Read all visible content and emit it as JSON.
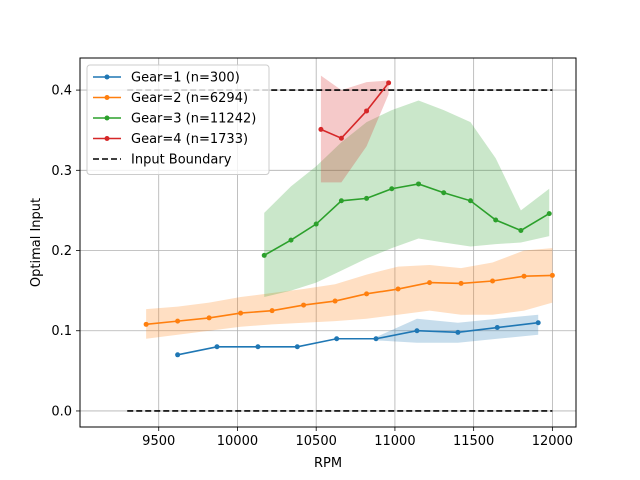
{
  "chart_data": {
    "type": "line",
    "title": "",
    "xlabel": "RPM",
    "ylabel": "Optimal Input",
    "xlim": [
      9000,
      12150
    ],
    "ylim": [
      -0.02,
      0.44
    ],
    "xticks": [
      9500,
      10000,
      10500,
      11000,
      11500,
      12000
    ],
    "yticks": [
      0.0,
      0.1,
      0.2,
      0.3,
      0.4
    ],
    "xtick_labels": [
      "9500",
      "10000",
      "10500",
      "11000",
      "11500",
      "12000"
    ],
    "ytick_labels": [
      "0.0",
      "0.1",
      "0.2",
      "0.3",
      "0.4"
    ],
    "grid": true,
    "legend_position": "upper-left",
    "series": [
      {
        "name": "Gear=1 (n=300)",
        "color": "#1f77b4",
        "x": [
          9620,
          9870,
          10130,
          10380,
          10630,
          10880,
          11140,
          11400,
          11650,
          11910
        ],
        "y": [
          0.07,
          0.08,
          0.08,
          0.08,
          0.09,
          0.09,
          0.1,
          0.098,
          0.104,
          0.11
        ],
        "band": {
          "x": [
            10880,
            11140,
            11400,
            11650,
            11910
          ],
          "upper": [
            0.092,
            0.115,
            0.11,
            0.115,
            0.12
          ],
          "lower": [
            0.088,
            0.085,
            0.085,
            0.09,
            0.095
          ]
        }
      },
      {
        "name": "Gear=2 (n=6294)",
        "color": "#ff7f0e",
        "x": [
          9420,
          9620,
          9820,
          10020,
          10220,
          10420,
          10620,
          10820,
          11020,
          11220,
          11420,
          11620,
          11820,
          12000
        ],
        "y": [
          0.108,
          0.112,
          0.116,
          0.122,
          0.125,
          0.132,
          0.137,
          0.146,
          0.152,
          0.16,
          0.159,
          0.162,
          0.168,
          0.169
        ],
        "band": {
          "x": [
            9420,
            9620,
            9820,
            10020,
            10220,
            10420,
            10620,
            10820,
            11020,
            11220,
            11420,
            11620,
            11820,
            12000
          ],
          "upper": [
            0.127,
            0.13,
            0.135,
            0.142,
            0.147,
            0.152,
            0.158,
            0.17,
            0.18,
            0.182,
            0.178,
            0.185,
            0.2,
            0.203
          ],
          "lower": [
            0.09,
            0.095,
            0.1,
            0.105,
            0.108,
            0.11,
            0.112,
            0.115,
            0.12,
            0.125,
            0.12,
            0.12,
            0.125,
            0.135
          ]
        }
      },
      {
        "name": "Gear=3 (n=11242)",
        "color": "#2ca02c",
        "x": [
          10170,
          10340,
          10500,
          10660,
          10820,
          10980,
          11150,
          11310,
          11480,
          11640,
          11800,
          11980
        ],
        "y": [
          0.194,
          0.213,
          0.233,
          0.262,
          0.265,
          0.277,
          0.283,
          0.272,
          0.262,
          0.238,
          0.225,
          0.246
        ],
        "band": {
          "x": [
            10170,
            10340,
            10500,
            10660,
            10820,
            10980,
            11150,
            11310,
            11480,
            11640,
            11800,
            11980
          ],
          "upper": [
            0.247,
            0.28,
            0.305,
            0.335,
            0.36,
            0.375,
            0.387,
            0.375,
            0.36,
            0.315,
            0.25,
            0.277
          ],
          "lower": [
            0.142,
            0.15,
            0.16,
            0.175,
            0.19,
            0.203,
            0.215,
            0.21,
            0.205,
            0.208,
            0.21,
            0.218
          ]
        }
      },
      {
        "name": "Gear=4 (n=1733)",
        "color": "#d62728",
        "x": [
          10530,
          10660,
          10820,
          10960
        ],
        "y": [
          0.351,
          0.34,
          0.374,
          0.409
        ],
        "band": {
          "x": [
            10530,
            10660,
            10820,
            10960
          ],
          "upper": [
            0.418,
            0.4,
            0.41,
            0.412
          ],
          "lower": [
            0.285,
            0.285,
            0.33,
            0.395
          ]
        }
      }
    ],
    "reference_lines": [
      {
        "name": "Input Boundary",
        "color": "#000000",
        "style": "dashed",
        "y": 0.4,
        "x_range": [
          9300,
          12000
        ]
      },
      {
        "name": "",
        "color": "#000000",
        "style": "dashed",
        "y": 0.0,
        "x_range": [
          9300,
          12000
        ]
      }
    ],
    "legend": [
      {
        "label": "Gear=1 (n=300)",
        "color": "#1f77b4",
        "style": "solid-marker"
      },
      {
        "label": "Gear=2 (n=6294)",
        "color": "#ff7f0e",
        "style": "solid-marker"
      },
      {
        "label": "Gear=3 (n=11242)",
        "color": "#2ca02c",
        "style": "solid-marker"
      },
      {
        "label": "Gear=4 (n=1733)",
        "color": "#d62728",
        "style": "solid-marker"
      },
      {
        "label": "Input Boundary",
        "color": "#000000",
        "style": "dashed"
      }
    ]
  }
}
